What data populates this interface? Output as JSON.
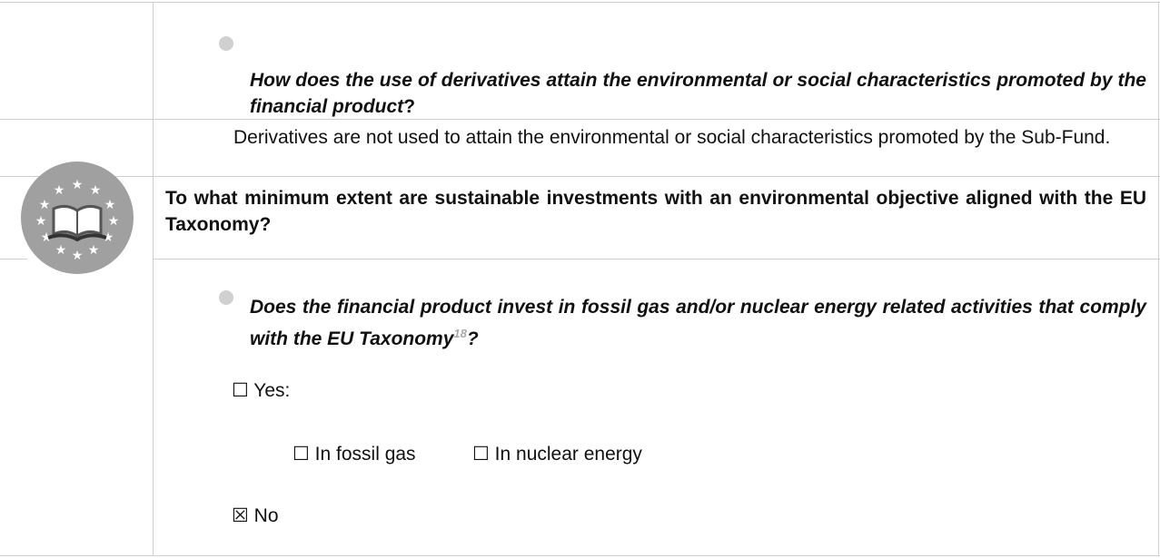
{
  "derivatives_question": {
    "text": "How does the use of derivatives attain the environmental or social characteristics promoted by the financial product",
    "end": "?"
  },
  "derivatives_answer": "Derivatives are not used to attain the environmental or social characteristics promoted by the Sub-Fund.",
  "taxonomy_heading": "To what minimum extent are sustainable investments with an environmental objective aligned with the EU Taxonomy?",
  "fossil_question": {
    "text": "Does the financial product invest in fossil gas and/or nuclear energy related activities that comply with the EU Taxonomy",
    "footnote": "18",
    "end": "?"
  },
  "options": {
    "yes": "☐ Yes:",
    "fossil_gas": "☐ In fossil gas",
    "nuclear": "☐ In nuclear energy",
    "no": "☒ No"
  }
}
